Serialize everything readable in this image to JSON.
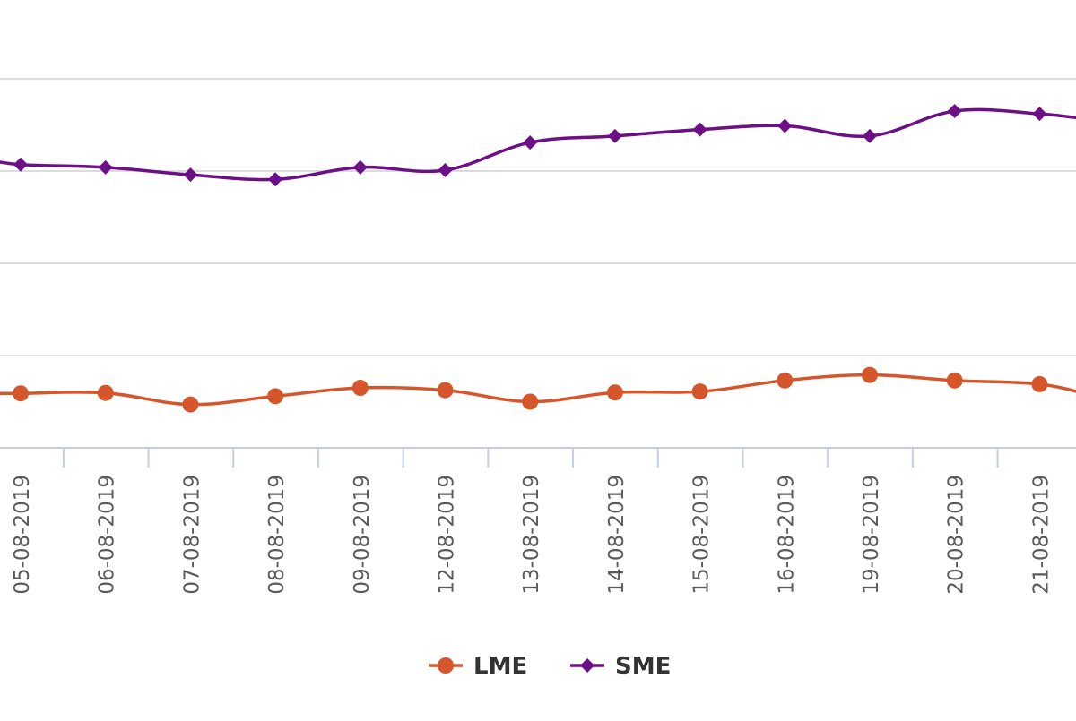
{
  "chart_data": {
    "type": "line",
    "categories": [
      "05-08-2019",
      "06-08-2019",
      "07-08-2019",
      "08-08-2019",
      "09-08-2019",
      "12-08-2019",
      "13-08-2019",
      "14-08-2019",
      "15-08-2019",
      "16-08-2019",
      "19-08-2019",
      "20-08-2019",
      "21-08-2019"
    ],
    "series": [
      {
        "name": "LME",
        "color": "#d4562a",
        "marker": "circle",
        "values": [
          1.59,
          1.595,
          1.47,
          1.56,
          1.65,
          1.625,
          1.5,
          1.6,
          1.61,
          1.73,
          1.79,
          1.73,
          1.69
        ]
      },
      {
        "name": "SME",
        "color": "#6d0f86",
        "marker": "diamond",
        "values": [
          4.07,
          4.04,
          3.96,
          3.91,
          4.04,
          4.01,
          4.31,
          4.38,
          4.45,
          4.49,
          4.38,
          4.65,
          4.62
        ]
      }
    ],
    "ylim": [
      1.0,
      5.0
    ],
    "gridlines": [
      1,
      2,
      3,
      4,
      5
    ],
    "grid": true,
    "legend_position": "bottom-center",
    "title": "",
    "xlabel": "",
    "ylabel": ""
  }
}
